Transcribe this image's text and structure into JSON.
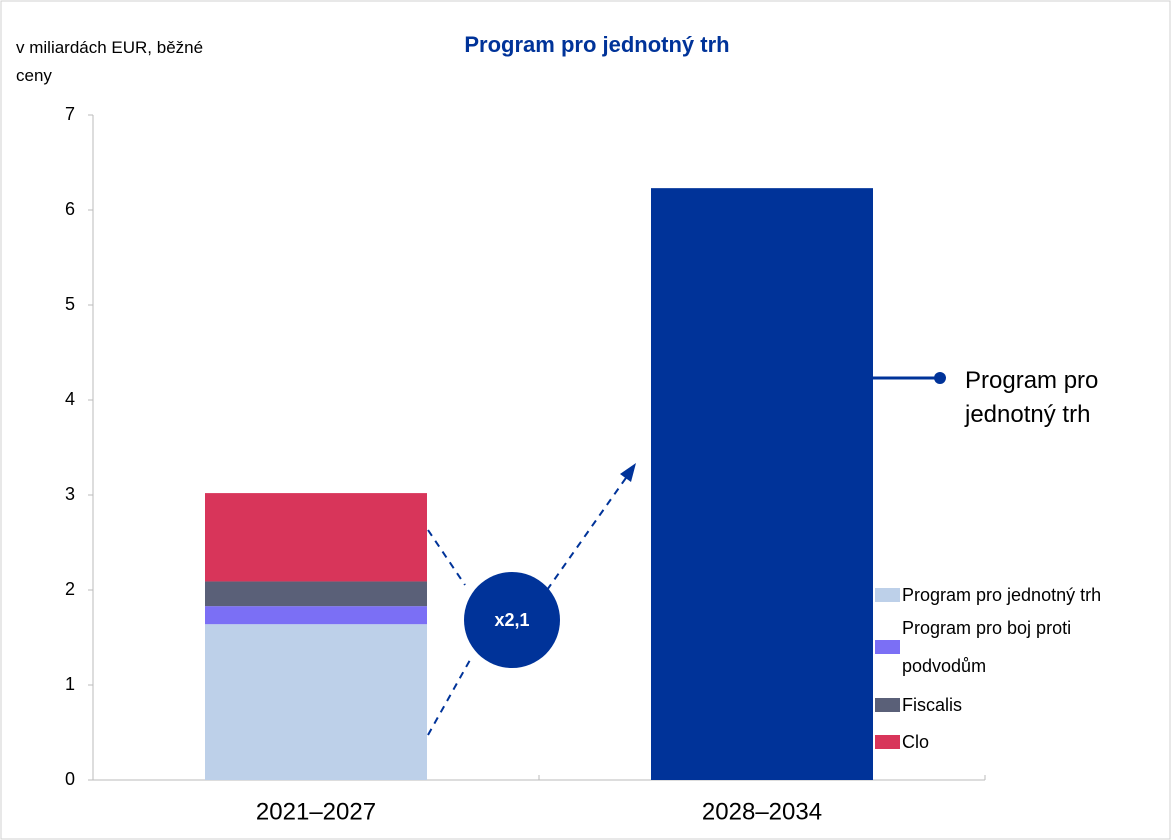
{
  "chart_data": {
    "type": "stacked_bar",
    "title": "Program pro jednotný trh",
    "y_label": "v miliardách EUR, běžné ceny",
    "categories": [
      "2021–2027",
      "2028–2034"
    ],
    "series": [
      {
        "name": "Program pro jednotný trh",
        "color": [
          "#bdd0e9",
          "#003399"
        ],
        "values": [
          1.64,
          6.23
        ]
      },
      {
        "name": "Program pro boj proti podvodům",
        "color": "#7b6ff5",
        "values": [
          0.19,
          null
        ]
      },
      {
        "name": "Fiscalis",
        "color": "#5a6078",
        "values": [
          0.26,
          null
        ]
      },
      {
        "name": "Clo",
        "color": "#d8355a",
        "values": [
          0.93,
          null
        ]
      }
    ],
    "ylim": [
      0,
      7
    ],
    "yticks": [
      0,
      1,
      2,
      3,
      4,
      5,
      6,
      7
    ],
    "annotations": {
      "bar_label": "Program pro jednotný trh",
      "ratio": "x2,1"
    }
  }
}
